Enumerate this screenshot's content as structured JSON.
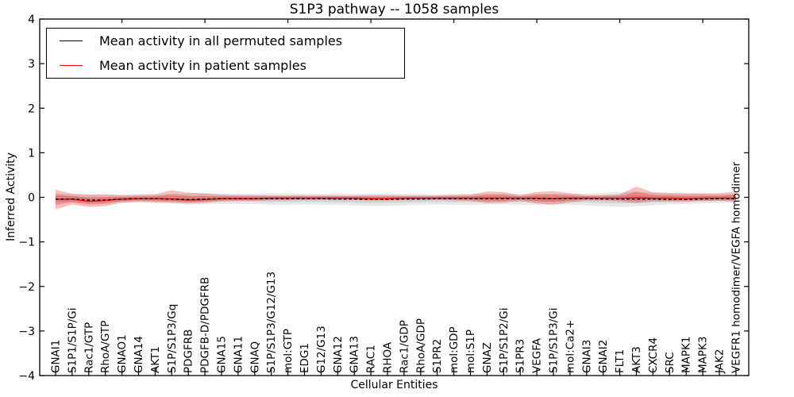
{
  "figure": {
    "title": "S1P3 pathway -- 1058 samples",
    "xlabel": "Cellular Entities",
    "ylabel": "Inferred Activity"
  },
  "chart_data": {
    "type": "line",
    "title": "S1P3 pathway -- 1058 samples",
    "xlabel": "Cellular Entities",
    "ylabel": "Inferred Activity",
    "ylim": [
      -4,
      4
    ],
    "yticks": [
      -4,
      -3,
      -2,
      -1,
      0,
      1,
      2,
      3,
      4
    ],
    "grid": false,
    "legend_position": "upper left",
    "categories": [
      "GNAI1",
      "S1P1/S1P/Gi",
      "Rac1/GTP",
      "RhoA/GTP",
      "GNAO1",
      "GNA14",
      "AKT1",
      "S1P/S1P3/Gq",
      "PDGFRB",
      "PDGFB-D/PDGFRB",
      "GNA15",
      "GNA11",
      "GNAQ",
      "S1P/S1P3/G12/G13",
      "mol:GTP",
      "EDG1",
      "G12/G13",
      "GNA12",
      "GNA13",
      "RAC1",
      "RHOA",
      "Rac1/GDP",
      "RhoA/GDP",
      "S1PR2",
      "mol:GDP",
      "mol:S1P",
      "GNAZ",
      "S1P/S1P2/Gi",
      "S1PR3",
      "VEGFA",
      "S1P/S1P3/Gi",
      "mol:Ca2+",
      "GNAI3",
      "GNAI2",
      "FLT1",
      "AKT3",
      "CXCR4",
      "SRC",
      "MAPK1",
      "MAPK3",
      "JAK2",
      "VEGFR1 homodimer/VEGFA homodimer"
    ],
    "series": [
      {
        "name": "Mean activity in all permuted samples",
        "color": "#000000",
        "line_style": "dashed",
        "band_color": "rgba(0,0,0,0.09)",
        "values": [
          -0.04,
          -0.04,
          -0.06,
          -0.06,
          -0.04,
          -0.03,
          -0.03,
          -0.04,
          -0.05,
          -0.04,
          -0.03,
          -0.03,
          -0.03,
          -0.03,
          -0.03,
          -0.03,
          -0.03,
          -0.04,
          -0.04,
          -0.05,
          -0.05,
          -0.04,
          -0.04,
          -0.03,
          -0.03,
          -0.03,
          -0.03,
          -0.03,
          -0.03,
          -0.03,
          -0.03,
          -0.03,
          -0.03,
          -0.04,
          -0.04,
          -0.04,
          -0.04,
          -0.05,
          -0.05,
          -0.04,
          -0.03,
          -0.03
        ],
        "band_upper": [
          0.08,
          0.07,
          0.06,
          0.06,
          0.05,
          0.05,
          0.06,
          0.07,
          0.09,
          0.09,
          0.08,
          0.08,
          0.08,
          0.09,
          0.09,
          0.08,
          0.08,
          0.08,
          0.08,
          0.08,
          0.08,
          0.08,
          0.07,
          0.07,
          0.08,
          0.08,
          0.08,
          0.08,
          0.07,
          0.08,
          0.08,
          0.08,
          0.08,
          0.1,
          0.12,
          0.12,
          0.1,
          0.09,
          0.08,
          0.08,
          0.07,
          0.07
        ],
        "band_lower": [
          -0.12,
          -0.12,
          -0.14,
          -0.14,
          -0.12,
          -0.12,
          -0.13,
          -0.14,
          -0.16,
          -0.16,
          -0.15,
          -0.15,
          -0.15,
          -0.17,
          -0.17,
          -0.16,
          -0.17,
          -0.17,
          -0.18,
          -0.19,
          -0.19,
          -0.18,
          -0.17,
          -0.16,
          -0.17,
          -0.17,
          -0.16,
          -0.16,
          -0.17,
          -0.17,
          -0.16,
          -0.17,
          -0.18,
          -0.2,
          -0.22,
          -0.2,
          -0.18,
          -0.16,
          -0.15,
          -0.14,
          -0.13,
          -0.12
        ]
      },
      {
        "name": "Mean activity in patient samples",
        "color": "#ff0000",
        "line_style": "solid",
        "band_color": "rgba(225,45,40,0.30)",
        "values": [
          -0.05,
          -0.04,
          -0.09,
          -0.07,
          -0.04,
          -0.03,
          -0.03,
          -0.04,
          -0.06,
          -0.05,
          -0.03,
          -0.03,
          -0.03,
          -0.02,
          -0.02,
          -0.02,
          -0.02,
          -0.02,
          -0.02,
          -0.03,
          -0.03,
          -0.02,
          -0.02,
          -0.02,
          -0.02,
          -0.02,
          -0.02,
          -0.02,
          -0.02,
          -0.02,
          -0.03,
          -0.02,
          -0.02,
          -0.02,
          -0.02,
          -0.01,
          -0.02,
          -0.02,
          -0.03,
          -0.02,
          -0.02,
          -0.02
        ],
        "band_upper": [
          0.17,
          0.08,
          0.06,
          0.07,
          0.05,
          0.06,
          0.07,
          0.16,
          0.1,
          0.09,
          0.06,
          0.05,
          0.05,
          0.04,
          0.04,
          0.04,
          0.04,
          0.04,
          0.04,
          0.05,
          0.05,
          0.04,
          0.04,
          0.04,
          0.05,
          0.06,
          0.13,
          0.12,
          0.05,
          0.12,
          0.14,
          0.09,
          0.05,
          0.05,
          0.07,
          0.24,
          0.11,
          0.1,
          0.09,
          0.09,
          0.09,
          0.13
        ],
        "band_lower": [
          -0.27,
          -0.16,
          -0.22,
          -0.2,
          -0.12,
          -0.1,
          -0.11,
          -0.12,
          -0.14,
          -0.12,
          -0.09,
          -0.08,
          -0.08,
          -0.07,
          -0.07,
          -0.06,
          -0.06,
          -0.06,
          -0.06,
          -0.07,
          -0.07,
          -0.06,
          -0.06,
          -0.06,
          -0.07,
          -0.08,
          -0.13,
          -0.12,
          -0.08,
          -0.14,
          -0.17,
          -0.11,
          -0.07,
          -0.07,
          -0.09,
          -0.13,
          -0.09,
          -0.09,
          -0.09,
          -0.08,
          -0.08,
          -0.1
        ]
      }
    ]
  }
}
